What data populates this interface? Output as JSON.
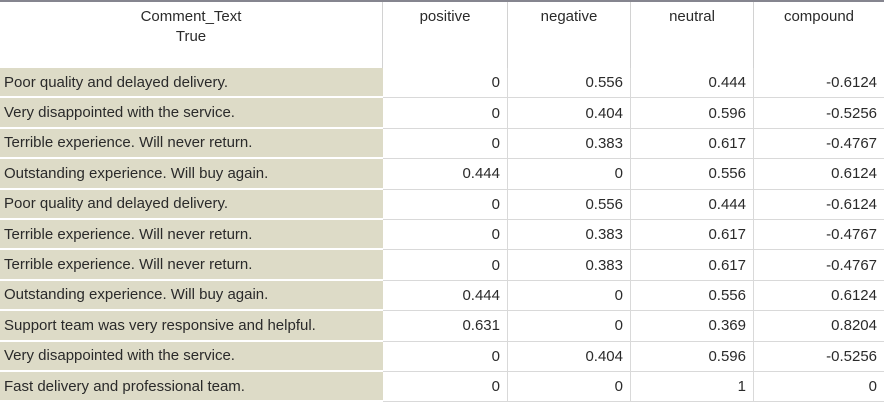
{
  "theme": {
    "index_bg": "#dddbc7",
    "top_border": "#85858f",
    "grid_line": "#d9d9d9",
    "header_divider": "#d2d2d2",
    "text": "#2a2a2a"
  },
  "table": {
    "index_header": {
      "line1": "Comment_Text",
      "line2": "True"
    },
    "columns": [
      "positive",
      "negative",
      "neutral",
      "compound"
    ],
    "rows": [
      {
        "text": "Poor quality and delayed delivery.",
        "positive": "0",
        "negative": "0.556",
        "neutral": "0.444",
        "compound": "-0.6124"
      },
      {
        "text": "Very disappointed with the service.",
        "positive": "0",
        "negative": "0.404",
        "neutral": "0.596",
        "compound": "-0.5256"
      },
      {
        "text": "Terrible experience. Will never return.",
        "positive": "0",
        "negative": "0.383",
        "neutral": "0.617",
        "compound": "-0.4767"
      },
      {
        "text": "Outstanding experience. Will buy again.",
        "positive": "0.444",
        "negative": "0",
        "neutral": "0.556",
        "compound": "0.6124"
      },
      {
        "text": "Poor quality and delayed delivery.",
        "positive": "0",
        "negative": "0.556",
        "neutral": "0.444",
        "compound": "-0.6124"
      },
      {
        "text": "Terrible experience. Will never return.",
        "positive": "0",
        "negative": "0.383",
        "neutral": "0.617",
        "compound": "-0.4767"
      },
      {
        "text": "Terrible experience. Will never return.",
        "positive": "0",
        "negative": "0.383",
        "neutral": "0.617",
        "compound": "-0.4767"
      },
      {
        "text": "Outstanding experience. Will buy again.",
        "positive": "0.444",
        "negative": "0",
        "neutral": "0.556",
        "compound": "0.6124"
      },
      {
        "text": "Support team was very responsive and helpful.",
        "positive": "0.631",
        "negative": "0",
        "neutral": "0.369",
        "compound": "0.8204"
      },
      {
        "text": "Very disappointed with the service.",
        "positive": "0",
        "negative": "0.404",
        "neutral": "0.596",
        "compound": "-0.5256"
      },
      {
        "text": "Fast delivery and professional team.",
        "positive": "0",
        "negative": "0",
        "neutral": "1",
        "compound": "0"
      }
    ]
  }
}
